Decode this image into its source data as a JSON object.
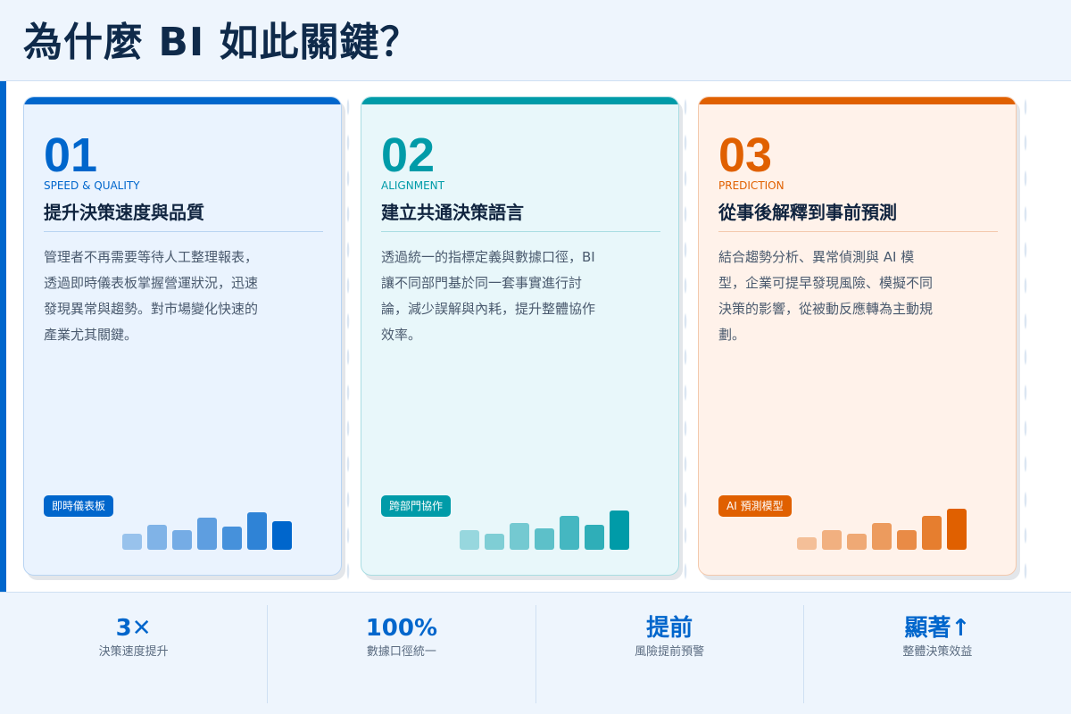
{
  "title": "為什麼 BI 如此關鍵？",
  "cards": [
    {
      "number": "01",
      "subtitle": "SPEED & QUALITY",
      "title": "提升決策速度與品質",
      "body": "管理者不再需要等待人工整理報表，透過即時儀表板掌握營運狀況，迅速發現異常與趨勢。對市場變化快速的產業尤其關鍵。",
      "tag": "即時儀表板",
      "accent": "#0066cc"
    },
    {
      "number": "02",
      "subtitle": "ALIGNMENT",
      "title": "建立共通決策語言",
      "body": "透過統一的指標定義與數據口徑，BI 讓不同部門基於同一套事實進行討論，減少誤解與內耗，提升整體協作效率。",
      "tag": "跨部門協作",
      "accent": "#009ba8"
    },
    {
      "number": "03",
      "subtitle": "PREDICTION",
      "title": "從事後解釋到事前預測",
      "body": "結合趨勢分析、異常偵測與 AI 模型，企業可提早發現風險、模擬不同決策的影響，從被動反應轉為主動規劃。",
      "tag": "AI 預測模型",
      "accent": "#e06000"
    }
  ],
  "stats": [
    {
      "value": "3✕",
      "label": "決策速度提升"
    },
    {
      "value": "100%",
      "label": "數據口徑統一"
    },
    {
      "value": "提前",
      "label": "風險提前預警"
    },
    {
      "value": "顯著↑",
      "label": "整體決策效益"
    }
  ]
}
